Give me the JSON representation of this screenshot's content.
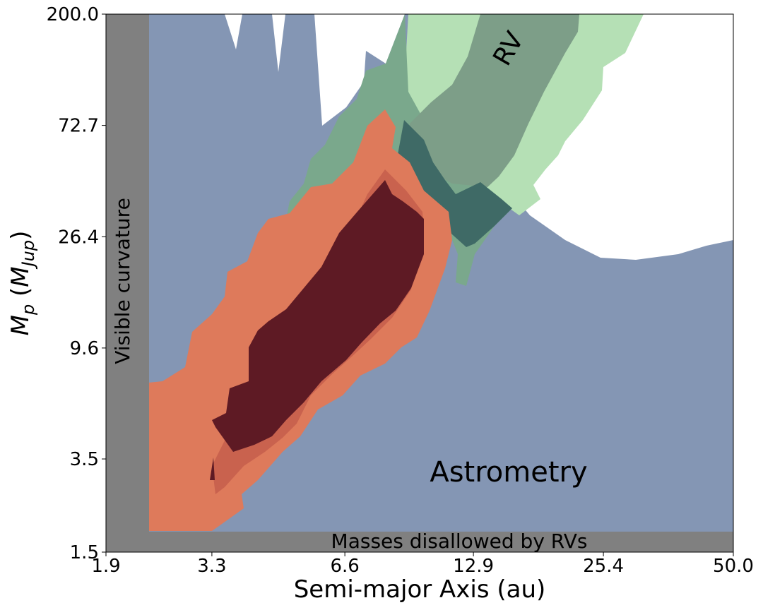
{
  "chart_data": {
    "type": "contour",
    "xlabel": "Semi-major Axis (au)",
    "ylabel": "M_p (M_Jup)",
    "ylabel_main": "M",
    "ylabel_sub": "p",
    "ylabel_unit_main": "M",
    "ylabel_unit_sub": "Jup",
    "x_scale": "log",
    "y_scale": "log",
    "xlim": [
      1.9,
      50.0
    ],
    "ylim": [
      1.5,
      200.0
    ],
    "x_ticks": [
      "1.9",
      "3.3",
      "6.6",
      "12.9",
      "25.4",
      "50.0"
    ],
    "y_ticks": [
      "1.5",
      "3.5",
      "9.6",
      "26.4",
      "72.7",
      "200.0"
    ],
    "grid": false,
    "legend": "none",
    "annotations": {
      "rv": "RV",
      "astrometry": "Astrometry",
      "visible_curvature": "Visible curvature",
      "masses_disallowed": "Masses disallowed by RVs"
    },
    "excluded_regions": [
      {
        "label": "Visible curvature",
        "axis": "x",
        "range": [
          1.9,
          2.2
        ]
      },
      {
        "label": "Masses disallowed by RVs",
        "axis": "y",
        "range": [
          1.5,
          1.7
        ]
      }
    ],
    "colors": {
      "astrometry_outer": "#8496b4",
      "rv_outer": "#b5e0b5",
      "rv_mid": "#7aa88c",
      "rv_inner": "#7d9e88",
      "overlap_dark": "#3f6a66",
      "joint_outer": "#de7a5b",
      "joint_mid": "#c9624e",
      "joint_inner": "#5e1a24",
      "excluded": "#808080"
    }
  }
}
